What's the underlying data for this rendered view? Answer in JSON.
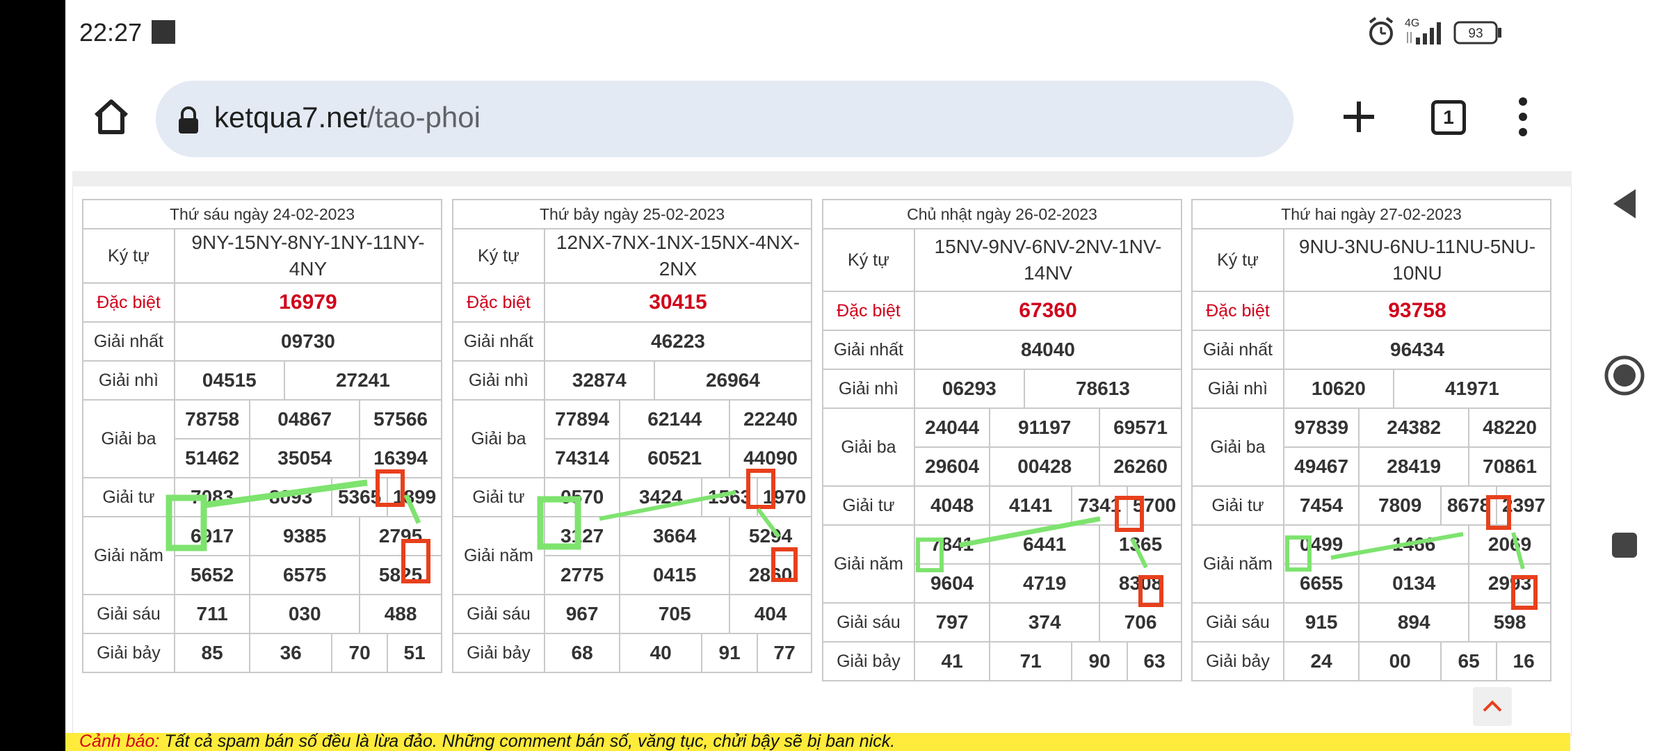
{
  "status_bar": {
    "time": "22:27",
    "network": "4G",
    "battery": "93",
    "icons": [
      "alarm-icon",
      "signal-icon",
      "battery-icon"
    ]
  },
  "browser": {
    "url_domain": "ketqua7.net",
    "url_path": "/tao-phoi",
    "tab_count": "1",
    "icons": [
      "home-icon",
      "lock-icon",
      "plus-icon",
      "tabs-icon",
      "menu-icon"
    ]
  },
  "labels": {
    "ky_tu": "Ký tự",
    "dac_biet": "Đặc biệt",
    "giai_nhat": "Giải nhất",
    "giai_nhi": "Giải nhì",
    "giai_ba": "Giải ba",
    "giai_tu": "Giải tư",
    "giai_nam": "Giải năm",
    "giai_sau": "Giải sáu",
    "giai_bay": "Giải bảy"
  },
  "days": [
    {
      "title": "Thứ sáu ngày 24-02-2023",
      "ky_tu": "9NY-15NY-8NY-1NY-11NY-4NY",
      "dac_biet": "16979",
      "giai_nhat": "09730",
      "giai_nhi": [
        "04515",
        "27241"
      ],
      "giai_ba": [
        "78758",
        "04867",
        "57566",
        "51462",
        "35054",
        "16394"
      ],
      "giai_tu": [
        "7083",
        "8093",
        "5365",
        "1899"
      ],
      "giai_nam": [
        "6917",
        "9385",
        "2795",
        "5652",
        "6575",
        "5825"
      ],
      "giai_sau": [
        "711",
        "030",
        "488"
      ],
      "giai_bay": [
        "85",
        "36",
        "70",
        "51"
      ]
    },
    {
      "title": "Thứ bảy ngày 25-02-2023",
      "ky_tu": "12NX-7NX-1NX-15NX-4NX-2NX",
      "dac_biet": "30415",
      "giai_nhat": "46223",
      "giai_nhi": [
        "32874",
        "26964"
      ],
      "giai_ba": [
        "77894",
        "62144",
        "22240",
        "74314",
        "60521",
        "44090"
      ],
      "giai_tu": [
        "0570",
        "3424",
        "1563",
        "1970"
      ],
      "giai_nam": [
        "3127",
        "3664",
        "5294",
        "2775",
        "0415",
        "2860"
      ],
      "giai_sau": [
        "967",
        "705",
        "404"
      ],
      "giai_bay": [
        "68",
        "40",
        "91",
        "77"
      ]
    },
    {
      "title": "Chủ nhật ngày 26-02-2023",
      "ky_tu": "15NV-9NV-6NV-2NV-1NV-14NV",
      "dac_biet": "67360",
      "giai_nhat": "84040",
      "giai_nhi": [
        "06293",
        "78613"
      ],
      "giai_ba": [
        "24044",
        "91197",
        "69571",
        "29604",
        "00428",
        "26260"
      ],
      "giai_tu": [
        "4048",
        "4141",
        "7341",
        "5700"
      ],
      "giai_nam": [
        "7841",
        "6441",
        "1365",
        "9604",
        "4719",
        "8308"
      ],
      "giai_sau": [
        "797",
        "374",
        "706"
      ],
      "giai_bay": [
        "41",
        "71",
        "90",
        "63"
      ]
    },
    {
      "title": "Thứ hai ngày 27-02-2023",
      "ky_tu": "9NU-3NU-6NU-11NU-5NU-10NU",
      "dac_biet": "93758",
      "giai_nhat": "96434",
      "giai_nhi": [
        "10620",
        "41971"
      ],
      "giai_ba": [
        "97839",
        "24382",
        "48220",
        "49467",
        "28419",
        "70861"
      ],
      "giai_tu": [
        "7454",
        "7809",
        "8678",
        "2397"
      ],
      "giai_nam": [
        "0499",
        "1466",
        "2069",
        "6655",
        "0134",
        "2993"
      ],
      "giai_sau": [
        "915",
        "894",
        "598"
      ],
      "giai_bay": [
        "24",
        "00",
        "65",
        "16"
      ]
    }
  ],
  "warning": {
    "label": "Cảnh báo:",
    "text": " Tất cả spam bán số đều là lừa đảo. Những comment bán số, văng tục, chửi bậy sẽ bị ban nick."
  },
  "annotation_colors": {
    "green": "#7ee36f",
    "red": "#e8401c"
  },
  "system_nav": {
    "icons": [
      "back-icon",
      "home-circle-icon",
      "recents-icon"
    ]
  }
}
